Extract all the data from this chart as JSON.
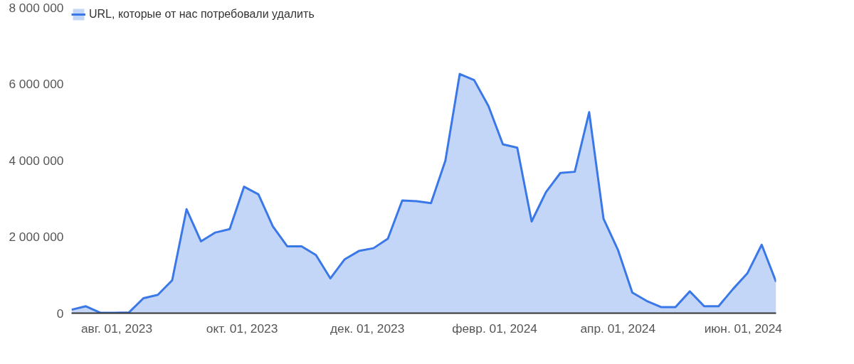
{
  "chart_data": {
    "type": "area",
    "x": [
      "2023-07-10",
      "2023-07-17",
      "2023-07-24",
      "2023-07-31",
      "2023-08-07",
      "2023-08-14",
      "2023-08-21",
      "2023-08-28",
      "2023-09-04",
      "2023-09-11",
      "2023-09-18",
      "2023-09-25",
      "2023-10-02",
      "2023-10-09",
      "2023-10-16",
      "2023-10-23",
      "2023-10-30",
      "2023-11-06",
      "2023-11-13",
      "2023-11-20",
      "2023-11-27",
      "2023-12-04",
      "2023-12-11",
      "2023-12-18",
      "2023-12-25",
      "2024-01-01",
      "2024-01-08",
      "2024-01-15",
      "2024-01-22",
      "2024-01-29",
      "2024-02-05",
      "2024-02-12",
      "2024-02-19",
      "2024-02-26",
      "2024-03-04",
      "2024-03-11",
      "2024-03-18",
      "2024-03-25",
      "2024-04-01",
      "2024-04-08",
      "2024-04-15",
      "2024-04-22",
      "2024-04-29",
      "2024-05-06",
      "2024-05-13",
      "2024-05-20",
      "2024-05-27",
      "2024-06-03",
      "2024-06-10",
      "2024-06-17"
    ],
    "series": [
      {
        "name": "URL, которые от нас потребовали удалить",
        "color": "#3b78e7",
        "values": [
          90000,
          180000,
          10000,
          10000,
          20000,
          390000,
          480000,
          860000,
          2720000,
          1880000,
          2110000,
          2200000,
          3310000,
          3110000,
          2270000,
          1750000,
          1750000,
          1520000,
          910000,
          1410000,
          1630000,
          1700000,
          1950000,
          2950000,
          2930000,
          2880000,
          3990000,
          6260000,
          6100000,
          5420000,
          4420000,
          4330000,
          2400000,
          3170000,
          3670000,
          3700000,
          5260000,
          2470000,
          1660000,
          540000,
          320000,
          160000,
          160000,
          570000,
          180000,
          180000,
          630000,
          1040000,
          1790000,
          820000
        ]
      }
    ],
    "xlim": [
      "2023-07-10",
      "2024-06-17"
    ],
    "xticks": [
      {
        "value": "2023-08-01",
        "label": "авг. 01, 2023"
      },
      {
        "value": "2023-10-01",
        "label": "окт. 01, 2023"
      },
      {
        "value": "2023-12-01",
        "label": "дек. 01, 2023"
      },
      {
        "value": "2024-02-01",
        "label": "февр. 01, 2024"
      },
      {
        "value": "2024-04-01",
        "label": "апр. 01, 2024"
      },
      {
        "value": "2024-06-01",
        "label": "июн. 01, 2024"
      }
    ],
    "ylim": [
      0,
      8000000
    ],
    "yticks": [
      {
        "value": 0,
        "label": "0"
      },
      {
        "value": 2000000,
        "label": "2 000 000"
      },
      {
        "value": 4000000,
        "label": "4 000 000"
      },
      {
        "value": 6000000,
        "label": "6 000 000"
      },
      {
        "value": 8000000,
        "label": "8 000 000"
      }
    ],
    "grid": false,
    "legend": "top left"
  }
}
